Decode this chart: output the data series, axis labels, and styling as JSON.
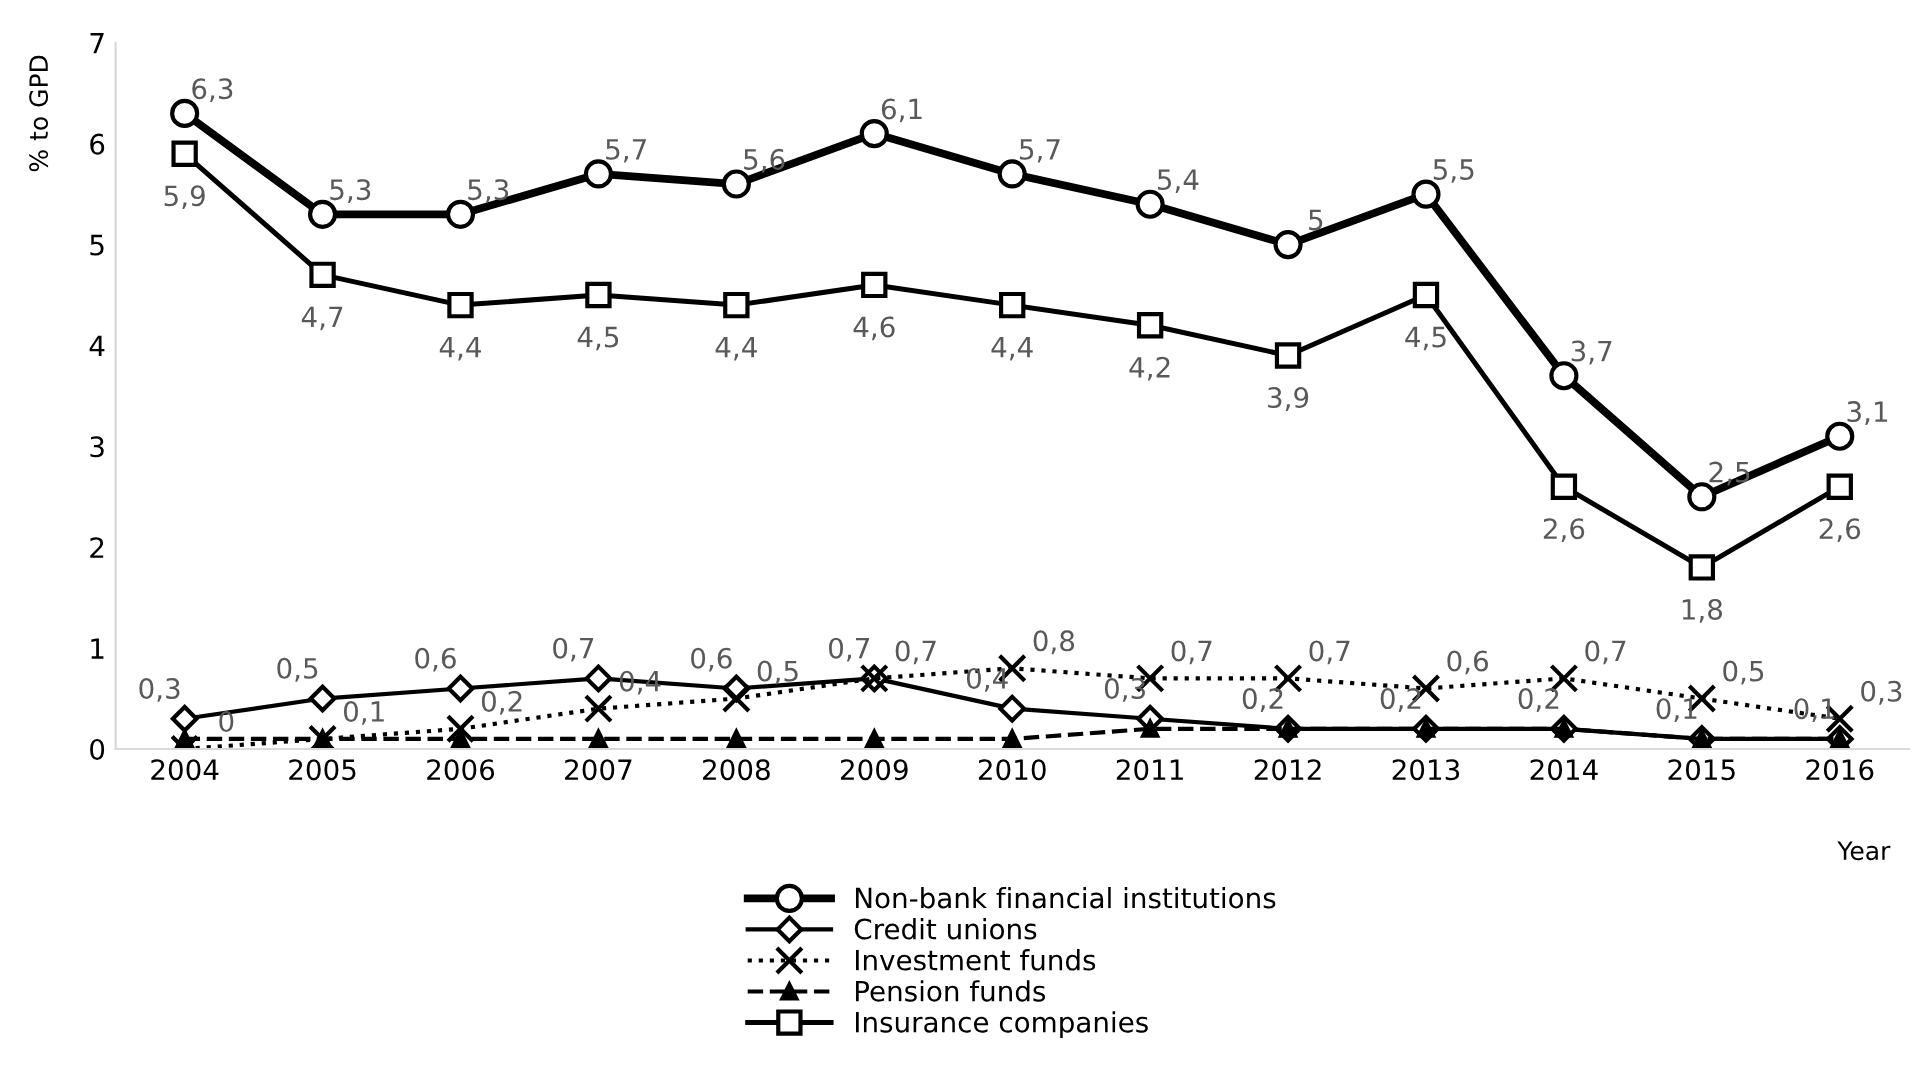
{
  "chart_data": {
    "type": "line",
    "ylabel": "% to GPD",
    "xlabel": "Year",
    "categories": [
      "2004",
      "2005",
      "2006",
      "2007",
      "2008",
      "2009",
      "2010",
      "2011",
      "2012",
      "2013",
      "2014",
      "2015",
      "2016"
    ],
    "ylim": [
      0,
      7
    ],
    "yticks": [
      0,
      1,
      2,
      3,
      4,
      5,
      6,
      7
    ],
    "grid": false,
    "legend": "bottom",
    "series": [
      {
        "name": "Non-bank financial institutions",
        "color": "#000000",
        "marker": "circle",
        "line_style": "solid",
        "values": [
          6.3,
          5.3,
          5.3,
          5.7,
          5.6,
          6.1,
          5.7,
          5.4,
          5,
          5.5,
          3.7,
          2.5,
          3.1
        ],
        "value_labels": [
          "6,3",
          "5,3",
          "5,3",
          "5,7",
          "5,6",
          "6,1",
          "5,7",
          "5,4",
          "5",
          "5,5",
          "3,7",
          "2,5",
          "3,1"
        ]
      },
      {
        "name": "Credit unions",
        "color": "#000000",
        "marker": "diamond",
        "line_style": "solid",
        "values": [
          0.3,
          0.5,
          0.6,
          0.7,
          0.6,
          0.7,
          0.4,
          0.3,
          0.2,
          0.2,
          0.2,
          0.1,
          0.1
        ],
        "value_labels": [
          "0,3",
          "0,5",
          "0,6",
          "0,7",
          "0,6",
          "0,7",
          "0,4",
          "0,3",
          "0,2",
          "0,2",
          "0,2",
          "0,1",
          "0,1"
        ]
      },
      {
        "name": "Investment funds",
        "color": "#000000",
        "marker": "cross",
        "line_style": "dotted",
        "values": [
          0,
          0.1,
          0.2,
          0.4,
          0.5,
          0.7,
          0.8,
          0.7,
          0.7,
          0.6,
          0.7,
          0.5,
          0.3
        ],
        "value_labels": [
          "0",
          "0,1",
          "0,2",
          "0,4",
          "0,5",
          "0,7",
          "0,8",
          "0,7",
          "0,7",
          "0,6",
          "0,7",
          "0,5",
          "0,3"
        ]
      },
      {
        "name": "Pension funds",
        "color": "#000000",
        "marker": "triangle",
        "line_style": "dashed",
        "values": [
          0.1,
          0.1,
          0.1,
          0.1,
          0.1,
          0.1,
          0.1,
          0.2,
          0.2,
          0.2,
          0.2,
          0.1,
          0.1
        ]
      },
      {
        "name": "Insurance companies",
        "color": "#000000",
        "marker": "square",
        "line_style": "solid",
        "values": [
          5.9,
          4.7,
          4.4,
          4.5,
          4.4,
          4.6,
          4.4,
          4.2,
          3.9,
          4.5,
          2.6,
          1.8,
          2.6
        ],
        "value_labels": [
          "5,9",
          "4,7",
          "4,4",
          "4,5",
          "4,4",
          "4,6",
          "4,4",
          "4,2",
          "3,9",
          "4,5",
          "2,6",
          "1,8",
          "2,6"
        ]
      }
    ]
  }
}
